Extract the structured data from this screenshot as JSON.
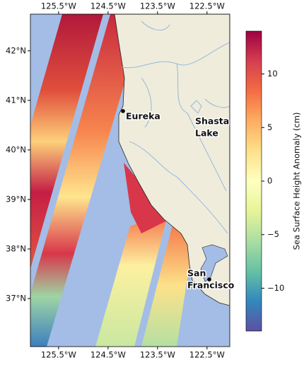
{
  "map": {
    "xlim": [
      -126.07,
      -122.04
    ],
    "ylim": [
      36.03,
      42.74
    ],
    "xticks": [
      {
        "value": -125.5,
        "label": "125.5°W"
      },
      {
        "value": -124.5,
        "label": "124.5°W"
      },
      {
        "value": -123.5,
        "label": "123.5°W"
      },
      {
        "value": -122.5,
        "label": "122.5°W"
      }
    ],
    "yticks": [
      {
        "value": 42,
        "label": "42°N"
      },
      {
        "value": 41,
        "label": "41°N"
      },
      {
        "value": 40,
        "label": "40°N"
      },
      {
        "value": 39,
        "label": "39°N"
      },
      {
        "value": 38,
        "label": "38°N"
      },
      {
        "value": 37,
        "label": "37°N"
      }
    ],
    "places": [
      {
        "lines": [
          "Eureka"
        ]
      },
      {
        "lines": [
          "Shasta",
          "Lake"
        ]
      },
      {
        "lines": [
          "San",
          "Francisco"
        ]
      }
    ]
  },
  "colorbar": {
    "label": "Sea Surface Height Anomaly (cm)",
    "lim": [
      -14,
      14
    ],
    "ticks": [
      10,
      5,
      0,
      {
        "value": -5,
        "label": "−5"
      },
      {
        "value": -10,
        "label": "−10"
      }
    ],
    "colors": [
      "#5e4fa2",
      "#3288bd",
      "#66c2a5",
      "#abdda4",
      "#e6f598",
      "#ffffbf",
      "#fee08b",
      "#fdae61",
      "#f46d43",
      "#d53e4f",
      "#9e0142"
    ]
  }
}
